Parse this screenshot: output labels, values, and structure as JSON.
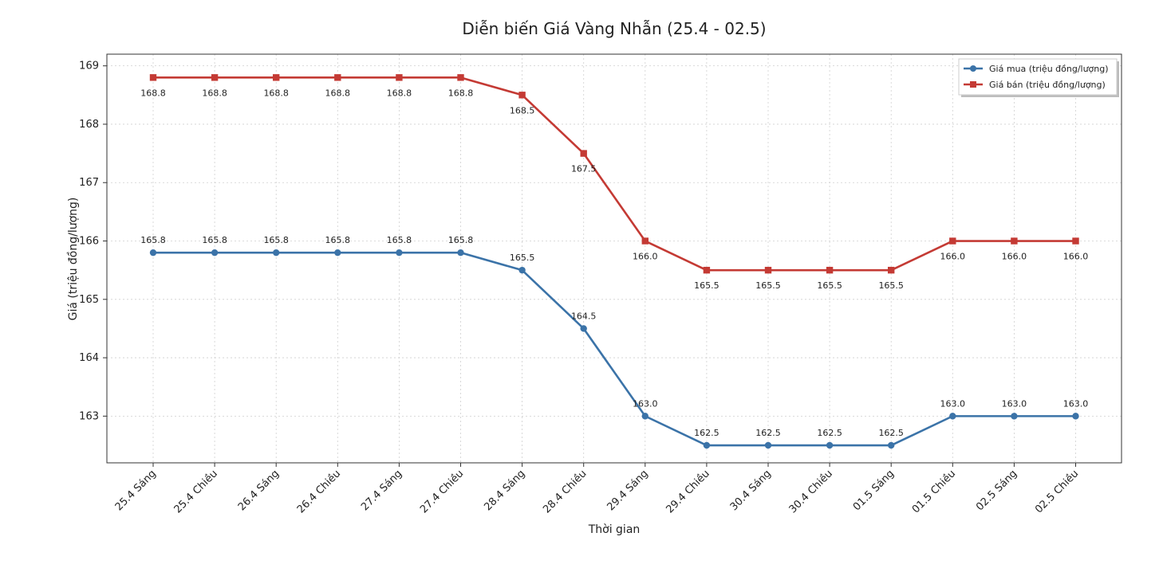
{
  "chart_data": {
    "type": "line",
    "title": "Diễn biến Giá Vàng Nhẫn (25.4 - 02.5)",
    "xlabel": "Thời gian",
    "ylabel": "Giá (triệu đồng/lượng)",
    "ylim": [
      162.2,
      169.2
    ],
    "yticks": [
      163,
      164,
      165,
      166,
      167,
      168,
      169
    ],
    "grid": true,
    "legend_position": "top-right",
    "categories": [
      "25.4 Sáng",
      "25.4 Chiều",
      "26.4 Sáng",
      "26.4 Chiều",
      "27.4 Sáng",
      "27.4 Chiều",
      "28.4 Sáng",
      "28.4 Chiều",
      "29.4 Sáng",
      "29.4 Chiều",
      "30.4 Sáng",
      "30.4 Chiều",
      "01.5 Sáng",
      "01.5 Chiều",
      "02.5 Sáng",
      "02.5 Chiều"
    ],
    "series": [
      {
        "name": "Giá mua (triệu đồng/lượng)",
        "color": "#3b73a8",
        "marker": "circle",
        "values": [
          165.8,
          165.8,
          165.8,
          165.8,
          165.8,
          165.8,
          165.5,
          164.5,
          163.0,
          162.5,
          162.5,
          162.5,
          162.5,
          163.0,
          163.0,
          163.0
        ],
        "labels": [
          "165.8",
          "165.8",
          "165.8",
          "165.8",
          "165.8",
          "165.8",
          "165.5",
          "164.5",
          "163.0",
          "162.5",
          "162.5",
          "162.5",
          "162.5",
          "163.0",
          "163.0",
          "163.0"
        ],
        "label_position": "above"
      },
      {
        "name": "Giá bán (triệu đồng/lượng)",
        "color": "#c43a34",
        "marker": "square",
        "values": [
          168.8,
          168.8,
          168.8,
          168.8,
          168.8,
          168.8,
          168.5,
          167.5,
          166.0,
          165.5,
          165.5,
          165.5,
          165.5,
          166.0,
          166.0,
          166.0
        ],
        "labels": [
          "168.8",
          "168.8",
          "168.8",
          "168.8",
          "168.8",
          "168.8",
          "168.5",
          "167.5",
          "166.0",
          "165.5",
          "165.5",
          "165.5",
          "165.5",
          "166.0",
          "166.0",
          "166.0"
        ],
        "label_position": "below"
      }
    ]
  }
}
